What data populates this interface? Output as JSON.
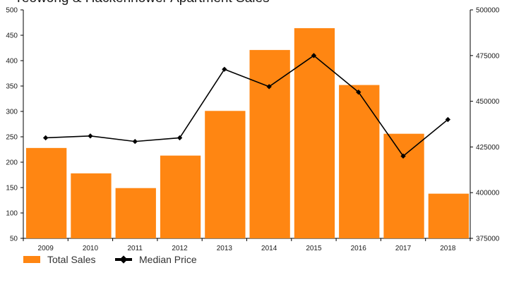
{
  "colors": {
    "bar": "#FF8612",
    "line": "#000000",
    "axis": "#000000"
  },
  "chart_data": {
    "type": "bar",
    "title": "Yeowong & Hackenhower Apartment Sales",
    "categories": [
      "2009",
      "2010",
      "2011",
      "2012",
      "2013",
      "2014",
      "2015",
      "2016",
      "2017",
      "2018"
    ],
    "series": [
      {
        "name": "Total Sales",
        "type": "bar",
        "axis": "left",
        "values": [
          228,
          178,
          149,
          213,
          301,
          421,
          464,
          352,
          256,
          138
        ]
      },
      {
        "name": "Median Price",
        "type": "line",
        "axis": "right",
        "values": [
          430000,
          431000,
          428000,
          430000,
          467500,
          458000,
          475000,
          455000,
          420000,
          440000
        ]
      }
    ],
    "ylim": [
      50,
      500
    ],
    "yticks": [
      50,
      100,
      150,
      200,
      250,
      300,
      350,
      400,
      450,
      500
    ],
    "y2lim": [
      375000,
      500000
    ],
    "y2ticks": [
      375000,
      400000,
      425000,
      450000,
      475000,
      500000
    ],
    "xlabel": "",
    "ylabel": "",
    "y2label": "",
    "grid": false,
    "legend_position": "bottom-left"
  }
}
